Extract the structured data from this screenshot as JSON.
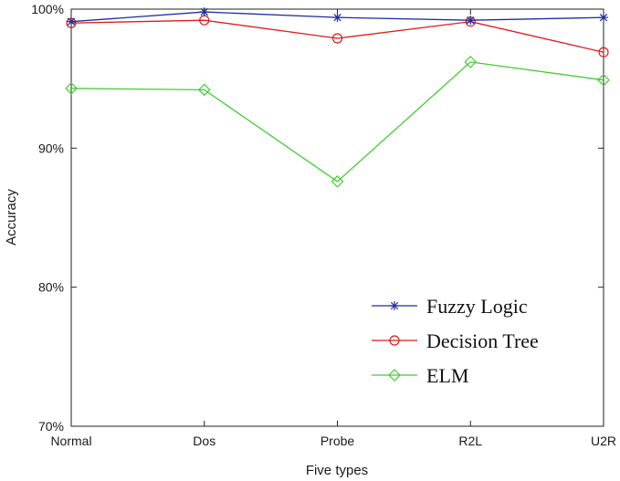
{
  "chart_data": {
    "type": "line",
    "title": "",
    "xlabel": "Five types",
    "ylabel": "Accuracy",
    "categories": [
      "Normal",
      "Dos",
      "Probe",
      "R2L",
      "U2R"
    ],
    "ylim": [
      70,
      100
    ],
    "yticks": [
      70,
      80,
      90,
      100
    ],
    "ytick_labels": [
      "70%",
      "80%",
      "90%",
      "100%"
    ],
    "grid": false,
    "legend_position": "lower-right",
    "series": [
      {
        "name": "Fuzzy Logic",
        "color": "#1f2f9e",
        "marker": "asterisk",
        "values": [
          99.1,
          99.8,
          99.4,
          99.2,
          99.4
        ]
      },
      {
        "name": "Decision Tree",
        "color": "#e01b1b",
        "marker": "circle",
        "values": [
          99.0,
          99.2,
          97.9,
          99.1,
          96.9
        ]
      },
      {
        "name": "ELM",
        "color": "#44cc33",
        "marker": "diamond",
        "values": [
          94.3,
          94.2,
          87.6,
          96.2,
          94.9
        ]
      }
    ]
  }
}
